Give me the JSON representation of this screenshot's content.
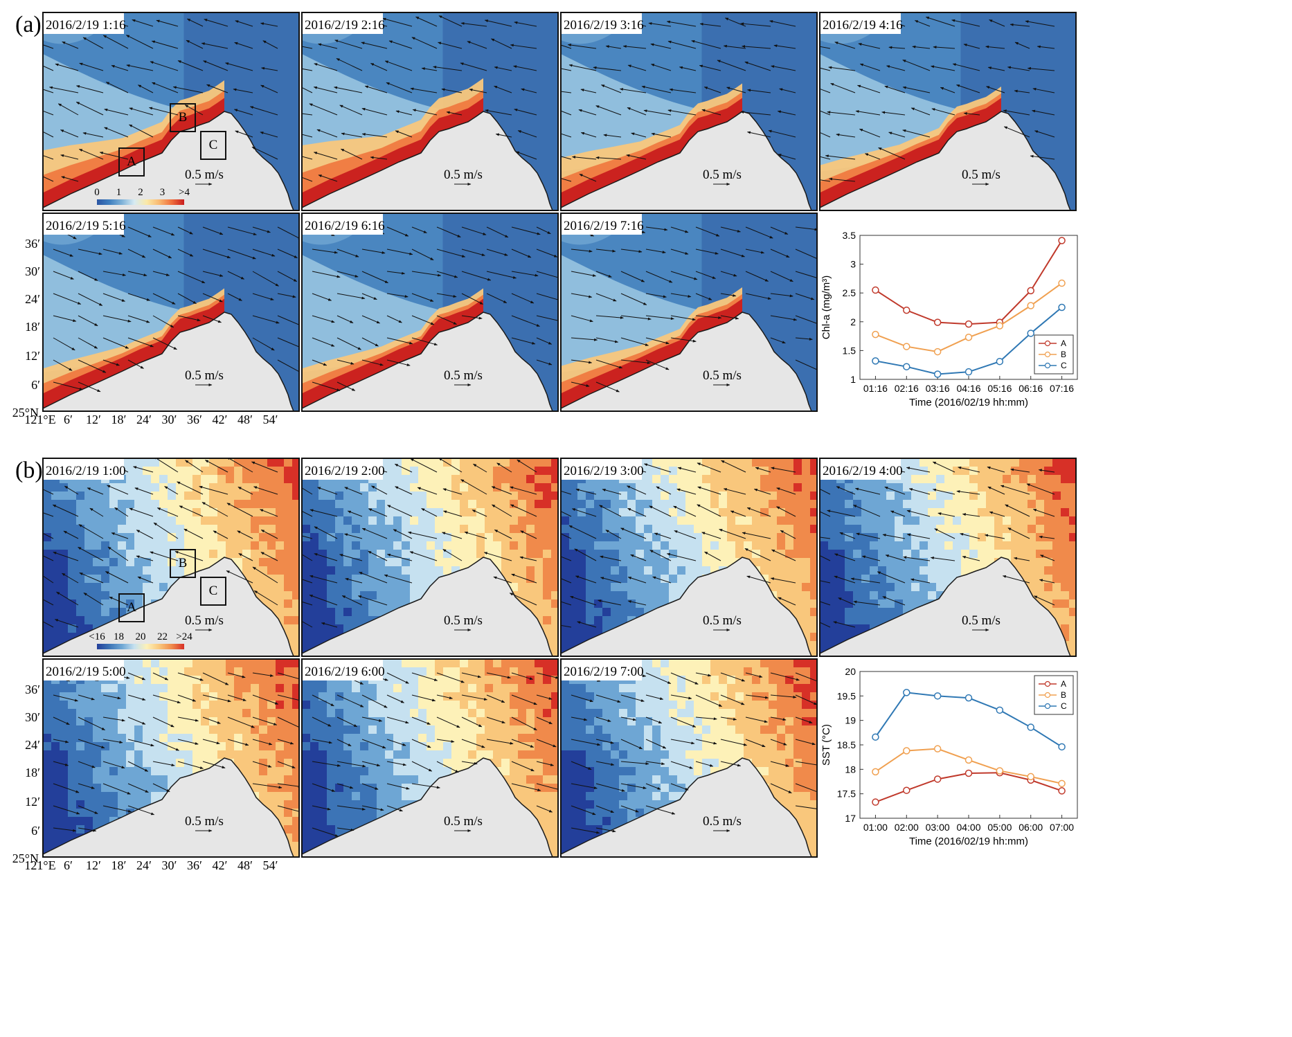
{
  "colors": {
    "land": "#e6e6e6",
    "coast": "#1a1a1a",
    "chl_ramp": [
      "#2b55a3",
      "#3f7fbf",
      "#7fb2d8",
      "#d7ebf3",
      "#fbe9a7",
      "#f9b970",
      "#ef6f3d",
      "#c81d1e"
    ],
    "sst_ramp": [
      "#233f9a",
      "#3c74b6",
      "#6ea6d4",
      "#c6e1f0",
      "#fdf1b8",
      "#f9c77c",
      "#f08a4b",
      "#d73027"
    ],
    "series": {
      "A": "#c0392b",
      "B": "#f0a050",
      "C": "#2f78b4"
    }
  },
  "panel_a": {
    "label": "(a)",
    "maps": [
      {
        "time": "2016/2/19 1:16",
        "vector_label": "0.5 m/s"
      },
      {
        "time": "2016/2/19 2:16",
        "vector_label": "0.5 m/s"
      },
      {
        "time": "2016/2/19 3:16",
        "vector_label": "0.5 m/s"
      },
      {
        "time": "2016/2/19 4:16",
        "vector_label": "0.5 m/s"
      },
      {
        "time": "2016/2/19 5:16",
        "vector_label": "0.5 m/s"
      },
      {
        "time": "2016/2/19 6:16",
        "vector_label": "0.5 m/s"
      },
      {
        "time": "2016/2/19 7:16",
        "vector_label": "0.5 m/s"
      }
    ],
    "boxes": [
      "A",
      "B",
      "C"
    ],
    "colorbar_ticks": [
      "0",
      "1",
      "2",
      "3",
      ">4"
    ],
    "lat_ticks": [
      "36′",
      "30′",
      "24′",
      "18′",
      "12′",
      "6′",
      "25°N"
    ],
    "lon_ticks": [
      "121°E",
      "6′",
      "12′",
      "18′",
      "24′",
      "30′",
      "36′",
      "42′",
      "48′",
      "54′"
    ]
  },
  "panel_b": {
    "label": "(b)",
    "maps": [
      {
        "time": "2016/2/19 1:00",
        "vector_label": "0.5 m/s"
      },
      {
        "time": "2016/2/19 2:00",
        "vector_label": "0.5 m/s"
      },
      {
        "time": "2016/2/19 3:00",
        "vector_label": "0.5 m/s"
      },
      {
        "time": "2016/2/19 4:00",
        "vector_label": "0.5 m/s"
      },
      {
        "time": "2016/2/19 5:00",
        "vector_label": "0.5 m/s"
      },
      {
        "time": "2016/2/19 6:00",
        "vector_label": "0.5 m/s"
      },
      {
        "time": "2016/2/19 7:00",
        "vector_label": "0.5 m/s"
      }
    ],
    "boxes": [
      "A",
      "B",
      "C"
    ],
    "colorbar_ticks": [
      "<16",
      "18",
      "20",
      "22",
      ">24"
    ],
    "lat_ticks": [
      "36′",
      "30′",
      "24′",
      "18′",
      "12′",
      "6′",
      "25°N"
    ],
    "lon_ticks": [
      "121°E",
      "6′",
      "12′",
      "18′",
      "24′",
      "30′",
      "36′",
      "42′",
      "48′",
      "54′"
    ]
  },
  "chart_data": [
    {
      "type": "line",
      "ylabel": "Chl-a (mg/m³)",
      "xlabel": "Time (2016/02/19 hh:mm)",
      "categories": [
        "01:16",
        "02:16",
        "03:16",
        "04:16",
        "05:16",
        "06:16",
        "07:16"
      ],
      "ylim": [
        1,
        3.5
      ],
      "yticks": [
        "1",
        "1.5",
        "2",
        "2.5",
        "3",
        "3.5"
      ],
      "legend": "bottom-right",
      "series": [
        {
          "name": "A",
          "values": [
            2.55,
            2.2,
            1.99,
            1.96,
            1.99,
            2.54,
            3.41
          ]
        },
        {
          "name": "B",
          "values": [
            1.78,
            1.57,
            1.48,
            1.73,
            1.93,
            2.28,
            2.67
          ]
        },
        {
          "name": "C",
          "values": [
            1.32,
            1.22,
            1.09,
            1.13,
            1.31,
            1.8,
            2.25
          ]
        }
      ]
    },
    {
      "type": "line",
      "ylabel": "SST (°C)",
      "xlabel": "Time (2016/02/19 hh:mm)",
      "categories": [
        "01:00",
        "02:00",
        "03:00",
        "04:00",
        "05:00",
        "06:00",
        "07:00"
      ],
      "ylim": [
        17,
        20
      ],
      "yticks": [
        "17",
        "17.5",
        "18",
        "18.5",
        "19",
        "19.5",
        "20"
      ],
      "legend": "top-right",
      "series": [
        {
          "name": "A",
          "values": [
            17.33,
            17.57,
            17.8,
            17.92,
            17.93,
            17.78,
            17.56
          ]
        },
        {
          "name": "B",
          "values": [
            17.95,
            18.38,
            18.42,
            18.19,
            17.97,
            17.85,
            17.71
          ]
        },
        {
          "name": "C",
          "values": [
            18.66,
            19.57,
            19.5,
            19.46,
            19.21,
            18.86,
            18.46
          ]
        }
      ]
    }
  ]
}
